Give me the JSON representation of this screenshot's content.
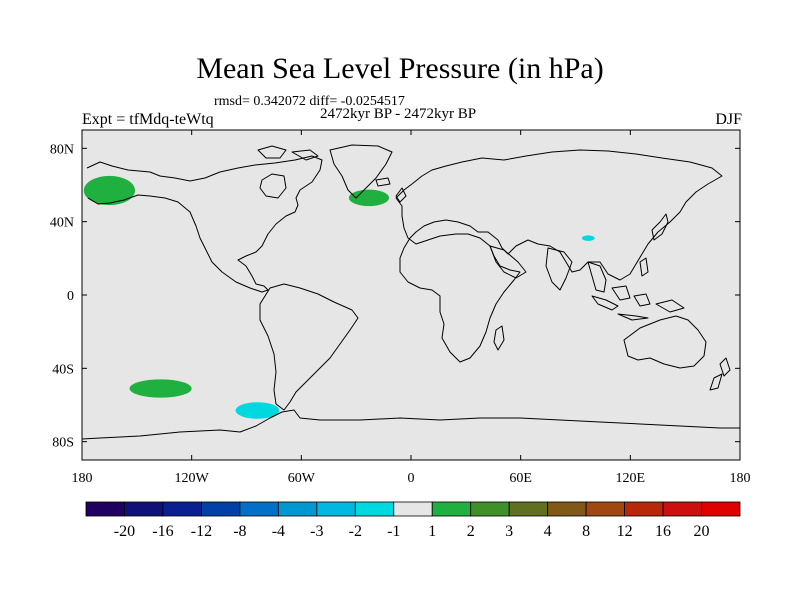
{
  "title": "Mean Sea Level Pressure (in hPa)",
  "stats": "rmsd= 0.342072 diff= -0.0254517",
  "period": "2472kyr BP - 2472kyr BP",
  "experiment": "Expt = tfMdq-teWtq",
  "season": "DJF",
  "colors": {
    "ocean": "#e6e6e6",
    "coast": "#000000"
  },
  "chart_data": {
    "type": "heatmap",
    "title": "Mean Sea Level Pressure (in hPa)",
    "x_ticks": [
      {
        "value": -180,
        "label": "180"
      },
      {
        "value": -120,
        "label": "120W"
      },
      {
        "value": -60,
        "label": "60W"
      },
      {
        "value": 0,
        "label": "0"
      },
      {
        "value": 60,
        "label": "60E"
      },
      {
        "value": 120,
        "label": "120E"
      },
      {
        "value": 180,
        "label": "180"
      }
    ],
    "y_ticks": [
      {
        "value": 80,
        "label": "80N"
      },
      {
        "value": 40,
        "label": "40N"
      },
      {
        "value": 0,
        "label": "0"
      },
      {
        "value": -40,
        "label": "40S"
      },
      {
        "value": -80,
        "label": "80S"
      }
    ],
    "xlim": [
      -180,
      180
    ],
    "ylim": [
      -90,
      90
    ],
    "anomalies": [
      {
        "name": "north-pacific-positive",
        "lon": -165,
        "lat": 57,
        "lon_radius": 14,
        "lat_radius": 8,
        "color": "#20b040"
      },
      {
        "name": "north-atlantic-positive",
        "lon": -23,
        "lat": 53,
        "lon_radius": 11,
        "lat_radius": 4.5,
        "color": "#20b040"
      },
      {
        "name": "tibet-negative",
        "lon": 97,
        "lat": 31,
        "lon_radius": 3.5,
        "lat_radius": 1.5,
        "color": "#00d8e0"
      },
      {
        "name": "south-pacific-positive",
        "lon": -137,
        "lat": -51,
        "lon_radius": 17,
        "lat_radius": 5,
        "color": "#20b040"
      },
      {
        "name": "amundsen-negative",
        "lon": -84,
        "lat": -63,
        "lon_radius": 12,
        "lat_radius": 4.5,
        "color": "#00d8e0"
      }
    ],
    "colorbar": {
      "boundaries": [
        "-20",
        "-16",
        "-12",
        "-8",
        "-4",
        "-3",
        "-2",
        "-1",
        "1",
        "2",
        "3",
        "4",
        "8",
        "12",
        "16",
        "20"
      ],
      "colors": [
        "#200060",
        "#10107a",
        "#0a2090",
        "#0040a8",
        "#0070c8",
        "#0098d0",
        "#00b8e0",
        "#00d8e0",
        "#e6e6e6",
        "#20b040",
        "#40902a",
        "#607020",
        "#805818",
        "#a04810",
        "#b82808",
        "#cc1010",
        "#e00000"
      ]
    }
  }
}
